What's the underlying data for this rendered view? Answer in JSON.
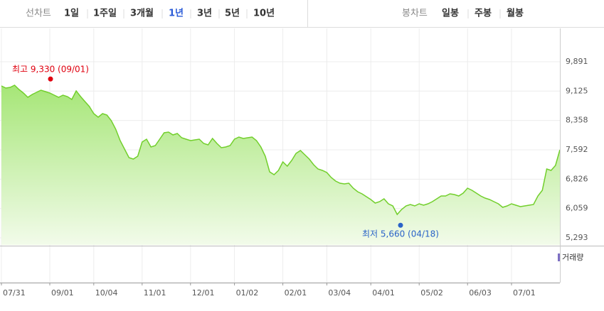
{
  "toolbar": {
    "line_label": "선차트",
    "line_items": [
      "1일",
      "1주일",
      "3개월",
      "1년",
      "3년",
      "5년",
      "10년"
    ],
    "selected_index": 3,
    "selected_color": "#2a5bd7",
    "candle_label": "봉차트",
    "candle_items": [
      "일봉",
      "주봉",
      "월봉"
    ]
  },
  "chart_data": {
    "type": "area",
    "categories": [
      "07/31",
      null,
      null,
      null,
      null,
      null,
      null,
      null,
      null,
      null,
      null,
      "09/01",
      null,
      null,
      null,
      null,
      null,
      null,
      null,
      null,
      null,
      "10/04",
      null,
      null,
      null,
      null,
      null,
      null,
      null,
      null,
      null,
      null,
      "11/01",
      null,
      null,
      null,
      null,
      null,
      null,
      null,
      null,
      null,
      null,
      "12/01",
      null,
      null,
      null,
      null,
      null,
      null,
      null,
      null,
      null,
      "01/02",
      null,
      null,
      null,
      null,
      null,
      null,
      null,
      null,
      null,
      null,
      "02/01",
      null,
      null,
      null,
      null,
      null,
      null,
      null,
      null,
      null,
      "03/04",
      null,
      null,
      null,
      null,
      null,
      null,
      null,
      null,
      null,
      "04/01",
      null,
      null,
      null,
      null,
      null,
      null,
      null,
      null,
      null,
      null,
      "05/02",
      null,
      null,
      null,
      null,
      null,
      null,
      null,
      null,
      null,
      null,
      "06/03",
      null,
      null,
      null,
      null,
      null,
      null,
      null,
      null,
      null,
      "07/01",
      null,
      null,
      null,
      null,
      null,
      null,
      null,
      null,
      null,
      null,
      null
    ],
    "series": [
      {
        "color": "#72cf2c",
        "values": [
          9261,
          9205,
          9224,
          9279,
          9168,
          9075,
          8964,
          9038,
          9094,
          9149,
          9112,
          9075,
          9020,
          8964,
          9020,
          8983,
          8908,
          9131,
          8983,
          8853,
          8723,
          8538,
          8445,
          8538,
          8500,
          8352,
          8130,
          7833,
          7611,
          7388,
          7351,
          7425,
          7796,
          7870,
          7666,
          7703,
          7870,
          8037,
          8056,
          7981,
          8018,
          7907,
          7870,
          7833,
          7852,
          7870,
          7759,
          7722,
          7889,
          7759,
          7648,
          7666,
          7703,
          7870,
          7926,
          7889,
          7907,
          7926,
          7833,
          7666,
          7425,
          7017,
          6943,
          7054,
          7277,
          7166,
          7314,
          7499,
          7573,
          7462,
          7351,
          7203,
          7091,
          7054,
          6999,
          6869,
          6776,
          6721,
          6702,
          6721,
          6591,
          6498,
          6443,
          6368,
          6294,
          6202,
          6239,
          6313,
          6183,
          6127,
          5905,
          6035,
          6127,
          6164,
          6127,
          6183,
          6146,
          6183,
          6239,
          6313,
          6387,
          6387,
          6443,
          6424,
          6387,
          6461,
          6591,
          6535,
          6461,
          6387,
          6331,
          6294,
          6239,
          6183,
          6090,
          6127,
          6183,
          6146,
          6109,
          6127,
          6146,
          6164,
          6387,
          6535,
          7091,
          7054,
          7184,
          7592
        ]
      }
    ],
    "ylim": [
      5108,
      10762
    ],
    "yticks": [
      {
        "value": 9891,
        "label": "9,891"
      },
      {
        "value": 9125,
        "label": "9,125"
      },
      {
        "value": 8358,
        "label": "8,358"
      },
      {
        "value": 7592,
        "label": "7,592"
      },
      {
        "value": 6826,
        "label": "6,826"
      },
      {
        "value": 6059,
        "label": "6,059"
      },
      {
        "value": 5293,
        "label": "5,293"
      }
    ],
    "grid": true,
    "annotations": [
      {
        "text": "최고 9,330 (09/01)",
        "value": 9330,
        "color": "#e0000f"
      },
      {
        "text": "최저 5,660 (04/18)",
        "value": 5660,
        "color": "#2a63c8"
      }
    ],
    "volume_label": "거래량",
    "volume_color": "#7d6fc4"
  }
}
